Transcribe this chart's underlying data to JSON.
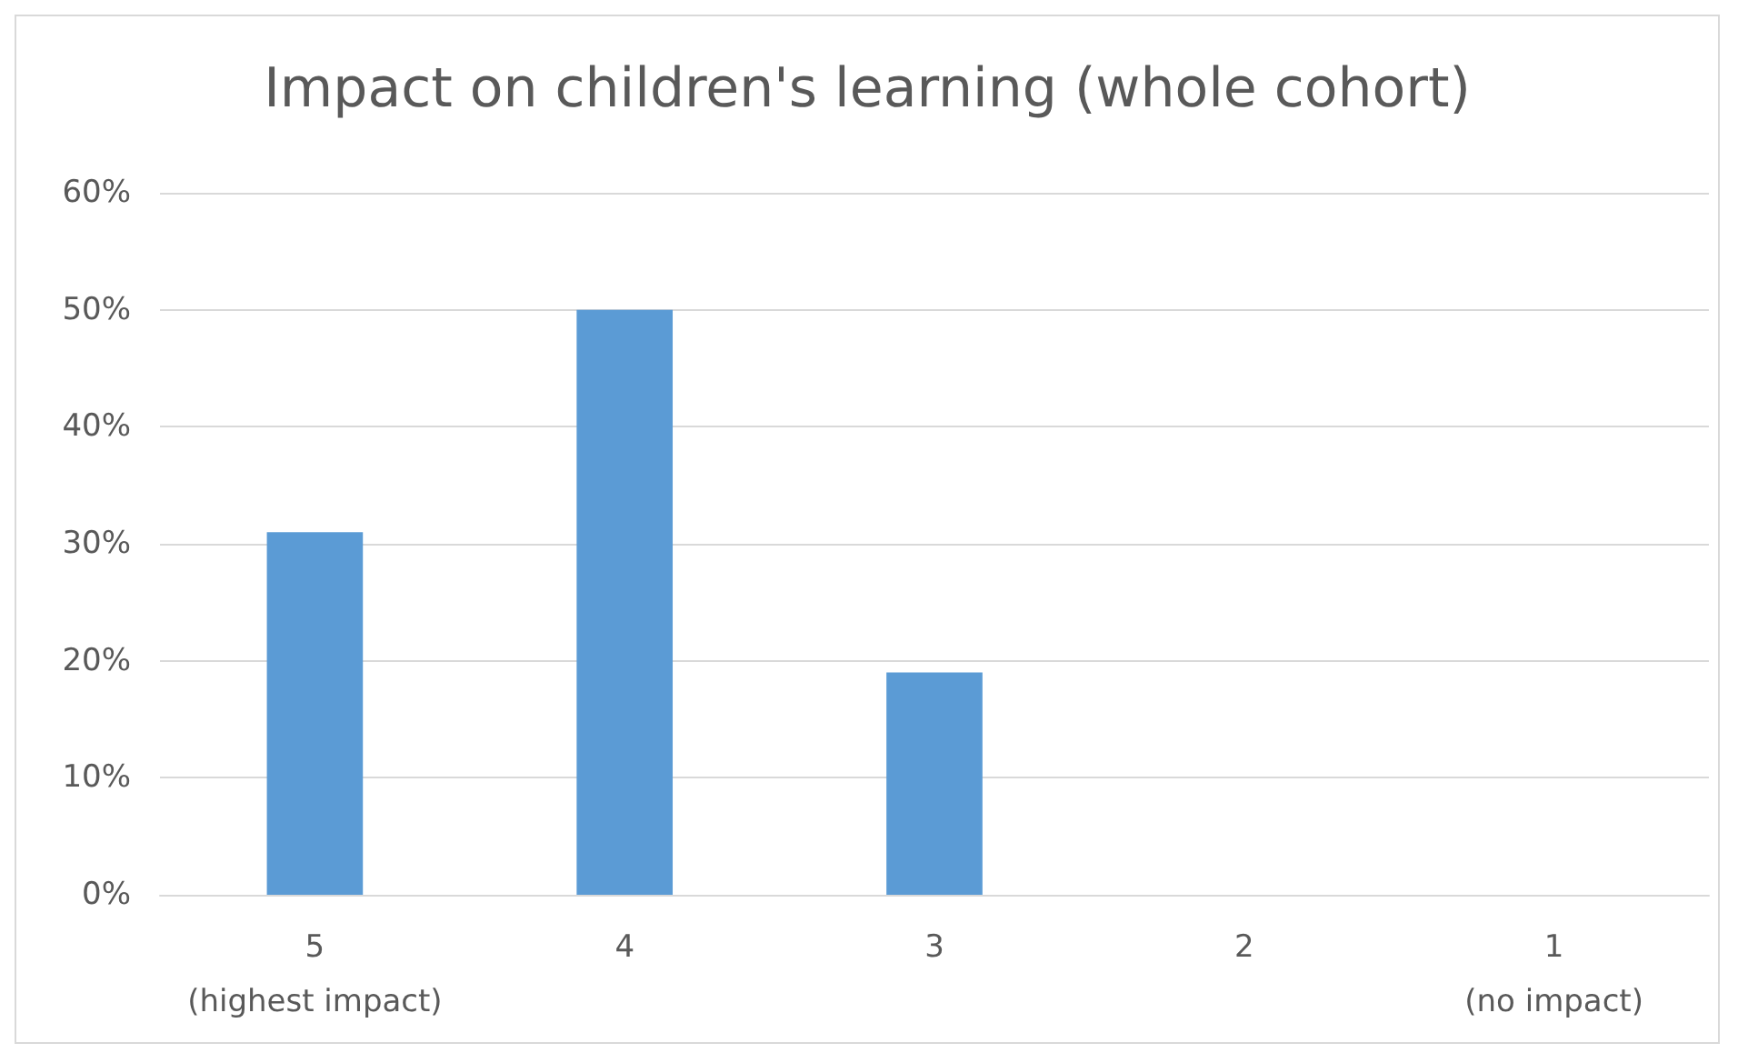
{
  "chart_data": {
    "type": "bar",
    "title": "Impact on children's learning (whole cohort)",
    "categories": [
      "5\n(highest impact)",
      "4",
      "3",
      "2",
      "1\n(no impact)"
    ],
    "values": [
      31,
      50,
      19,
      0,
      0
    ],
    "color": "#5b9bd5",
    "ylim": [
      0,
      60
    ],
    "yticks": [
      {
        "value": 0,
        "label": "0%"
      },
      {
        "value": 10,
        "label": "10%"
      },
      {
        "value": 20,
        "label": "20%"
      },
      {
        "value": 30,
        "label": "30%"
      },
      {
        "value": 40,
        "label": "40%"
      },
      {
        "value": 50,
        "label": "50%"
      },
      {
        "value": 60,
        "label": "60%"
      }
    ],
    "grid": true
  }
}
